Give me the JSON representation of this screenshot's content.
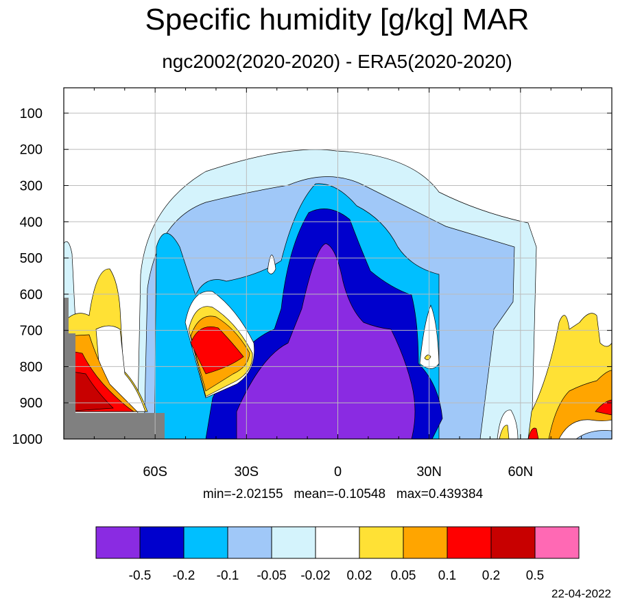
{
  "chart_data": {
    "type": "heatmap",
    "title": "Specific humidity [g/kg] MAR",
    "subtitle": "ngc2002(2020-2020) - ERA5(2020-2020)",
    "stats": {
      "min": "-2.02155",
      "mean": "-0.10548",
      "max": "0.439384"
    },
    "x_tick_labels": [
      "60S",
      "30S",
      "0",
      "30N",
      "60N"
    ],
    "x_tick_values": [
      -60,
      -30,
      0,
      30,
      60
    ],
    "y_tick_labels": [
      "100",
      "200",
      "300",
      "400",
      "500",
      "600",
      "700",
      "800",
      "900",
      "1000"
    ],
    "y_tick_values": [
      100,
      200,
      300,
      400,
      500,
      600,
      700,
      800,
      900,
      1000
    ],
    "xlim": [
      -90,
      90
    ],
    "ylim": [
      1000,
      30
    ],
    "grid": true,
    "colorbar_levels": [
      "-0.5",
      "-0.2",
      "-0.1",
      "-0.05",
      "-0.02",
      "0.02",
      "0.05",
      "0.1",
      "0.2",
      "0.5"
    ],
    "colorbar_colors": [
      "#8a2be2",
      "#0000cd",
      "#00bfff",
      "#a0c8f8",
      "#d4f3fc",
      "#ffffff",
      "#ffe135",
      "#ffa500",
      "#ff0000",
      "#c80000",
      "#ff69b4"
    ],
    "missing_color": "#808080"
  },
  "footer": {
    "date": "22-04-2022"
  }
}
